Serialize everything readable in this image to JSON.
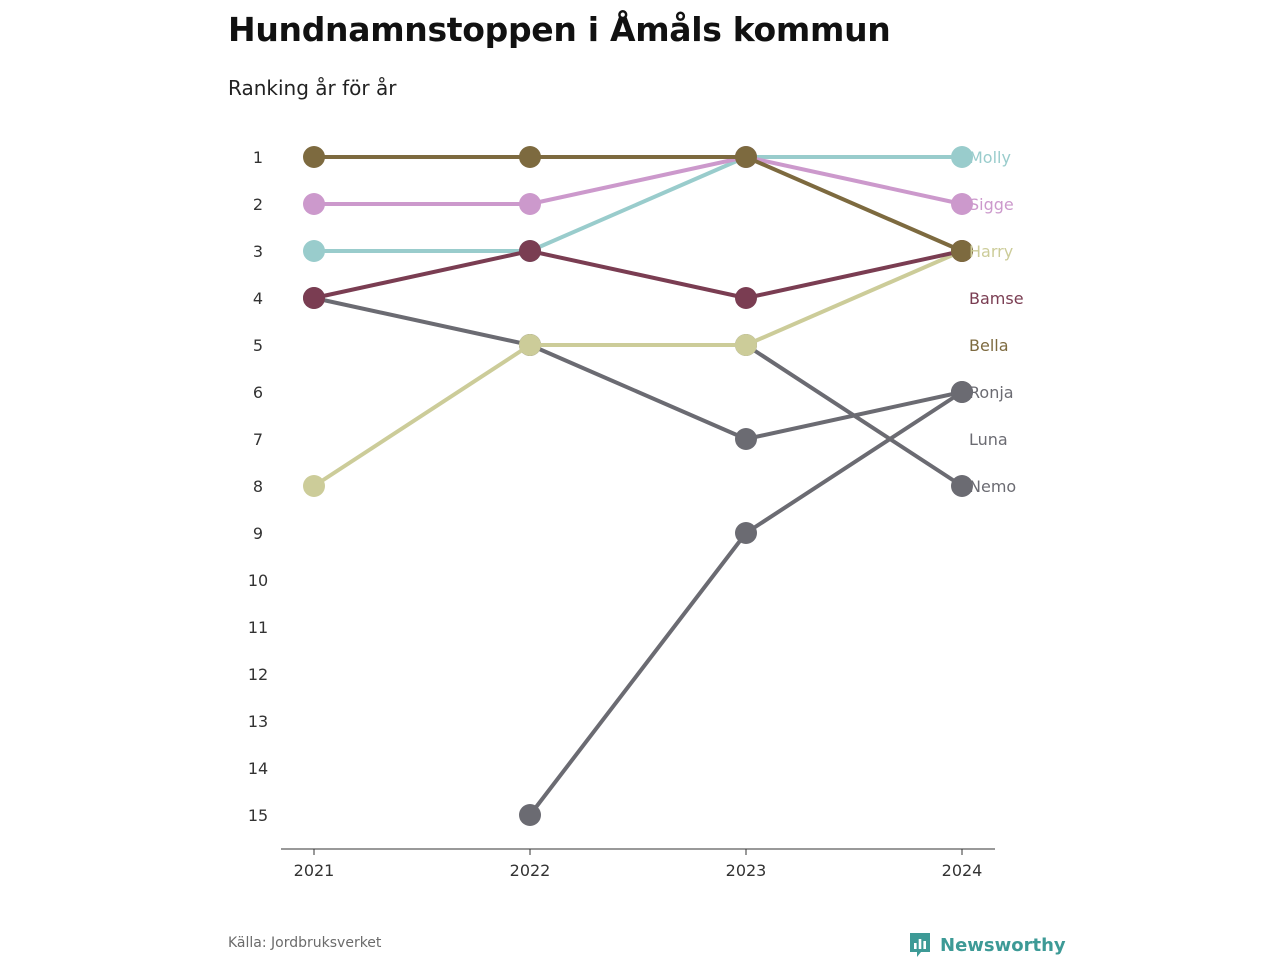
{
  "title": "Hundnamnstoppen i Åmåls kommun",
  "subtitle": "Ranking år för år",
  "source": "Källa: Jordbruksverket",
  "brand": {
    "name": "Newsworthy",
    "icon": "bar-chart-speech-bubble-icon",
    "color": "#3d9a96"
  },
  "chart_data": {
    "type": "line",
    "x": [
      "2021",
      "2022",
      "2023",
      "2024"
    ],
    "y_ticks": [
      "1",
      "2",
      "3",
      "4",
      "5",
      "6",
      "7",
      "8",
      "9",
      "10",
      "11",
      "12",
      "13",
      "14",
      "15"
    ],
    "ylim": [
      1,
      15
    ],
    "y_reversed": true,
    "grid": false,
    "series": [
      {
        "name": "Molly",
        "color": "#99cccc",
        "values": [
          3,
          3,
          1,
          1
        ]
      },
      {
        "name": "Sigge",
        "color": "#cc99cc",
        "values": [
          2,
          2,
          1,
          2
        ]
      },
      {
        "name": "Harry",
        "color": "#cccc99",
        "values": [
          8,
          5,
          5,
          3
        ]
      },
      {
        "name": "Bamse",
        "color": "#7a3d52",
        "values": [
          4,
          3,
          4,
          3
        ]
      },
      {
        "name": "Bella",
        "color": "#7d6a3f",
        "values": [
          1,
          1,
          1,
          3
        ]
      },
      {
        "name": "Ronja",
        "color": "#6b6b72",
        "values": [
          null,
          15,
          9,
          6
        ]
      },
      {
        "name": "Luna",
        "color": "#6b6b72",
        "values": [
          4,
          5,
          7,
          6
        ]
      },
      {
        "name": "Nemo",
        "color": "#6b6b72",
        "values": [
          null,
          5,
          5,
          8
        ]
      }
    ],
    "end_labels": [
      {
        "name": "Molly",
        "rank": 1
      },
      {
        "name": "Sigge",
        "rank": 2
      },
      {
        "name": "Harry",
        "rank": 3
      },
      {
        "name": "Bamse",
        "rank": 4
      },
      {
        "name": "Bella",
        "rank": 5
      },
      {
        "name": "Ronja",
        "rank": 6
      },
      {
        "name": "Luna",
        "rank": 7
      },
      {
        "name": "Nemo",
        "rank": 8
      }
    ]
  }
}
